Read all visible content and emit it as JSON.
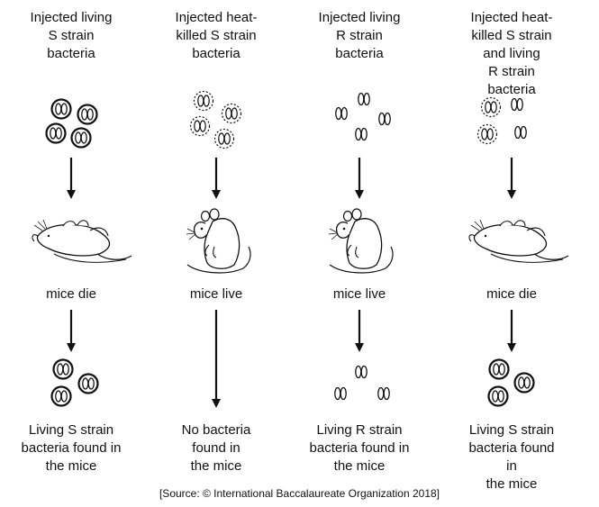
{
  "columns": [
    {
      "title": "Injected living\nS strain\nbacteria",
      "bacteria_type": "s-strain-capsule-icon",
      "outcome": "mice die",
      "result": "Living S strain\nbacteria found in\nthe mice"
    },
    {
      "title": "Injected heat-\nkilled S strain\nbacteria",
      "bacteria_type": "heat-killed-s-strain-icon",
      "outcome": "mice live",
      "result": "No bacteria\nfound in\nthe mice"
    },
    {
      "title": "Injected living\nR strain\nbacteria",
      "bacteria_type": "r-strain-icon",
      "outcome": "mice live",
      "result": "Living R strain\nbacteria found in\nthe mice"
    },
    {
      "title": "Injected heat-\nkilled S strain\nand living\nR strain bacteria",
      "bacteria_type": "mixed-strain-icon",
      "outcome": "mice die",
      "result": "Living S strain\nbacteria found in\nthe mice"
    }
  ],
  "source": "[Source: © International Baccalaureate Organization 2018]"
}
